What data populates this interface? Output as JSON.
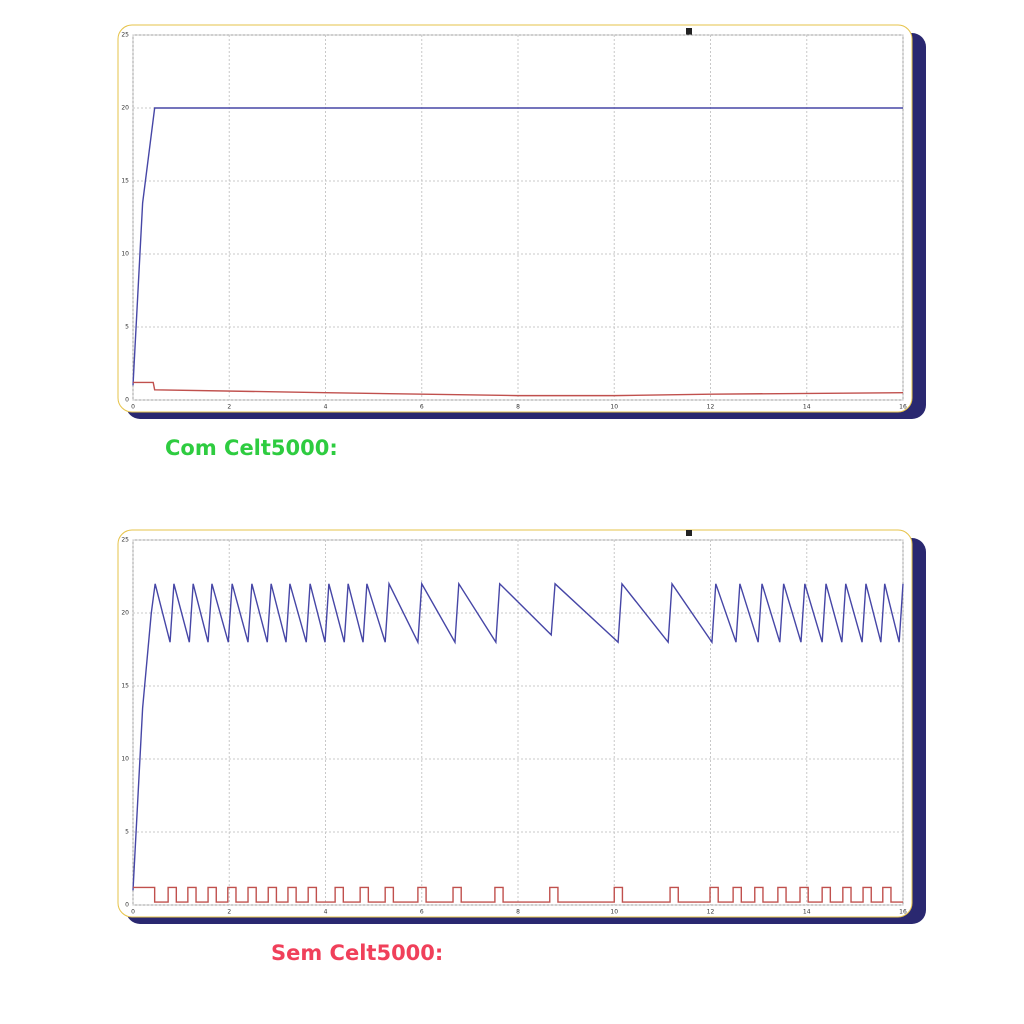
{
  "chart_data": [
    {
      "type": "line",
      "title": "Com Celt5000:",
      "title_color": "#2ecc40",
      "xlim": [
        0,
        16
      ],
      "ylim": [
        0,
        25
      ],
      "xticks": [
        0,
        2,
        4,
        6,
        8,
        10,
        12,
        14,
        16
      ],
      "yticks": [
        0,
        5,
        10,
        15,
        20,
        25
      ],
      "grid": true,
      "series": [
        {
          "color": "#4646a6",
          "x": [
            0,
            0.2,
            0.45,
            4,
            8,
            12,
            16
          ],
          "values": [
            1,
            13.5,
            20,
            20,
            20,
            20,
            20
          ]
        },
        {
          "color": "#c0504d",
          "x": [
            0,
            0.42,
            0.45,
            4,
            8,
            10,
            12,
            16
          ],
          "values": [
            1.2,
            1.2,
            0.7,
            0.5,
            0.3,
            0.3,
            0.4,
            0.5
          ]
        }
      ]
    },
    {
      "type": "line",
      "title": "Sem Celt5000:",
      "title_color": "#f0405a",
      "xlim": [
        0,
        16
      ],
      "ylim": [
        0,
        25
      ],
      "xticks": [
        0,
        2,
        4,
        6,
        8,
        10,
        12,
        14,
        16
      ],
      "yticks": [
        0,
        5,
        10,
        15,
        20,
        25
      ],
      "grid": true,
      "series": [
        {
          "color": "#4646a6",
          "x": [
            0,
            0.2,
            0.38,
            0.46,
            0.77,
            0.85,
            1.17,
            1.25,
            1.56,
            1.64,
            1.98,
            2.06,
            2.39,
            2.47,
            2.79,
            2.87,
            3.18,
            3.26,
            3.6,
            3.68,
            3.99,
            4.07,
            4.39,
            4.47,
            4.78,
            4.86,
            5.24,
            5.32,
            5.92,
            6.0,
            6.69,
            6.77,
            7.54,
            7.62,
            8.69,
            8.77,
            10.08,
            10.16,
            11.12,
            11.2,
            12.03,
            12.11,
            12.53,
            12.61,
            12.99,
            13.07,
            13.44,
            13.52,
            13.88,
            13.96,
            14.32,
            14.4,
            14.73,
            14.81,
            15.15,
            15.23,
            15.54,
            15.62,
            15.92,
            16.0
          ],
          "values": [
            1,
            13.5,
            20,
            22,
            18,
            22,
            18,
            22,
            18,
            22,
            18,
            22,
            18,
            22,
            18,
            22,
            18,
            22,
            18,
            22,
            18,
            22,
            18,
            22,
            18,
            22,
            18,
            22,
            18,
            22,
            18,
            22,
            18,
            22,
            18.5,
            22,
            18,
            22,
            18,
            22,
            18,
            22,
            18,
            22,
            18,
            22,
            18,
            22,
            18,
            22,
            18,
            22,
            18,
            22,
            18,
            22,
            18,
            22,
            18,
            22
          ]
        },
        {
          "color": "#c0504d",
          "x": [
            0,
            0.45,
            0.45,
            0.73,
            0.73,
            0.9,
            0.9,
            1.14,
            1.14,
            1.31,
            1.31,
            1.56,
            1.56,
            1.73,
            1.73,
            1.97,
            1.97,
            2.14,
            2.14,
            2.39,
            2.39,
            2.56,
            2.56,
            2.81,
            2.81,
            2.98,
            2.98,
            3.22,
            3.22,
            3.39,
            3.39,
            3.64,
            3.64,
            3.81,
            3.81,
            4.2,
            4.2,
            4.37,
            4.37,
            4.72,
            4.72,
            4.89,
            4.89,
            5.24,
            5.24,
            5.41,
            5.41,
            5.92,
            5.92,
            6.09,
            6.09,
            6.65,
            6.65,
            6.82,
            6.82,
            7.52,
            7.52,
            7.69,
            7.69,
            8.66,
            8.66,
            8.83,
            8.83,
            10.0,
            10.0,
            10.17,
            10.17,
            11.16,
            11.16,
            11.33,
            11.33,
            11.99,
            11.99,
            12.16,
            12.16,
            12.47,
            12.47,
            12.64,
            12.64,
            12.92,
            12.92,
            13.09,
            13.09,
            13.4,
            13.4,
            13.57,
            13.57,
            13.86,
            13.86,
            14.03,
            14.03,
            14.32,
            14.32,
            14.49,
            14.49,
            14.75,
            14.75,
            14.92,
            14.92,
            15.17,
            15.17,
            15.34,
            15.34,
            15.58,
            15.58,
            15.75,
            15.75,
            16
          ],
          "values": [
            1.2,
            1.2,
            0.2,
            0.2,
            1.2,
            1.2,
            0.2,
            0.2,
            1.2,
            1.2,
            0.2,
            0.2,
            1.2,
            1.2,
            0.2,
            0.2,
            1.2,
            1.2,
            0.2,
            0.2,
            1.2,
            1.2,
            0.2,
            0.2,
            1.2,
            1.2,
            0.2,
            0.2,
            1.2,
            1.2,
            0.2,
            0.2,
            1.2,
            1.2,
            0.2,
            0.2,
            1.2,
            1.2,
            0.2,
            0.2,
            1.2,
            1.2,
            0.2,
            0.2,
            1.2,
            1.2,
            0.2,
            0.2,
            1.2,
            1.2,
            0.2,
            0.2,
            1.2,
            1.2,
            0.2,
            0.2,
            1.2,
            1.2,
            0.2,
            0.2,
            1.2,
            1.2,
            0.2,
            0.2,
            1.2,
            1.2,
            0.2,
            0.2,
            1.2,
            1.2,
            0.2,
            0.2,
            1.2,
            1.2,
            0.2,
            0.2,
            1.2,
            1.2,
            0.2,
            0.2,
            1.2,
            1.2,
            0.2,
            0.2,
            1.2,
            1.2,
            0.2,
            0.2,
            1.2,
            1.2,
            0.2,
            0.2,
            1.2,
            1.2,
            0.2,
            0.2,
            1.2,
            1.2,
            0.2,
            0.2,
            1.2,
            1.2,
            0.2,
            0.2,
            1.2,
            1.2,
            0.2,
            0.2
          ]
        }
      ]
    }
  ]
}
